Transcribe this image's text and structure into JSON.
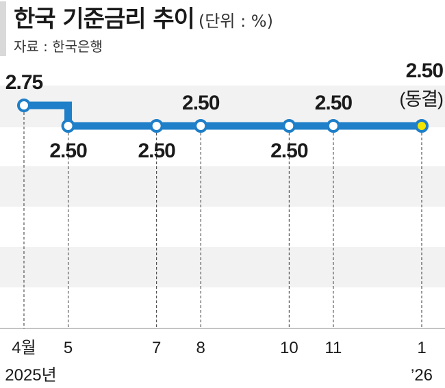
{
  "header": {
    "title": "한국 기준금리 추이",
    "unit": "(단위 : %)",
    "source": "자료 : 한국은행"
  },
  "colors": {
    "line": "#1f7fc8",
    "point_fill": "#ffffff",
    "highlight_fill": "#f2e600",
    "band": "#f2f2f2"
  },
  "chart_data": {
    "type": "line",
    "title": "한국 기준금리 추이",
    "categories": [
      "4월",
      "5",
      "7",
      "8",
      "10",
      "11",
      "1"
    ],
    "x_sublabels": [
      "2025년",
      "",
      "",
      "",
      "",
      "",
      "’26"
    ],
    "x": [
      "2025-04",
      "2025-05",
      "2025-07",
      "2025-08",
      "2025-10",
      "2025-11",
      "2026-01"
    ],
    "values": [
      2.75,
      2.5,
      2.5,
      2.5,
      2.5,
      2.5,
      2.5
    ],
    "value_labels": [
      "2.75",
      "2.50",
      "2.50",
      "2.50",
      "2.50",
      "2.50",
      "2.50"
    ],
    "label_position": [
      "above",
      "below",
      "below",
      "above",
      "below",
      "above",
      "above"
    ],
    "annotation_last": "(동결)",
    "highlight_index": 6,
    "step": true,
    "grid": "horizontal-bands"
  }
}
